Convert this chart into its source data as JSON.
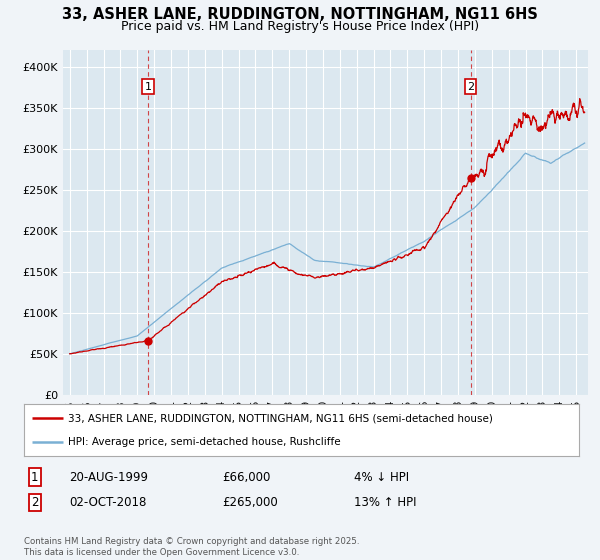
{
  "title": "33, ASHER LANE, RUDDINGTON, NOTTINGHAM, NG11 6HS",
  "subtitle": "Price paid vs. HM Land Registry's House Price Index (HPI)",
  "red_line_color": "#cc0000",
  "blue_line_color": "#7ab0d4",
  "background_color": "#f0f4f8",
  "plot_bg_color": "#dce8f0",
  "grid_color": "#ffffff",
  "ylim": [
    0,
    420000
  ],
  "yticks": [
    0,
    50000,
    100000,
    150000,
    200000,
    250000,
    300000,
    350000,
    400000
  ],
  "ytick_labels": [
    "£0",
    "£50K",
    "£100K",
    "£150K",
    "£200K",
    "£250K",
    "£300K",
    "£350K",
    "£400K"
  ],
  "xmin": 1994.6,
  "xmax": 2025.7,
  "marker1_x": 1999.64,
  "marker1_y": 66000,
  "marker2_x": 2018.75,
  "marker2_y": 265000,
  "marker1_label": "1",
  "marker2_label": "2",
  "legend_red_label": "33, ASHER LANE, RUDDINGTON, NOTTINGHAM, NG11 6HS (semi-detached house)",
  "legend_blue_label": "HPI: Average price, semi-detached house, Rushcliffe",
  "ann1_num": "1",
  "ann1_date": "20-AUG-1999",
  "ann1_price": "£66,000",
  "ann1_hpi": "4% ↓ HPI",
  "ann2_num": "2",
  "ann2_date": "02-OCT-2018",
  "ann2_price": "£265,000",
  "ann2_hpi": "13% ↑ HPI",
  "footer": "Contains HM Land Registry data © Crown copyright and database right 2025.\nThis data is licensed under the Open Government Licence v3.0.",
  "title_fontsize": 10.5,
  "subtitle_fontsize": 9
}
